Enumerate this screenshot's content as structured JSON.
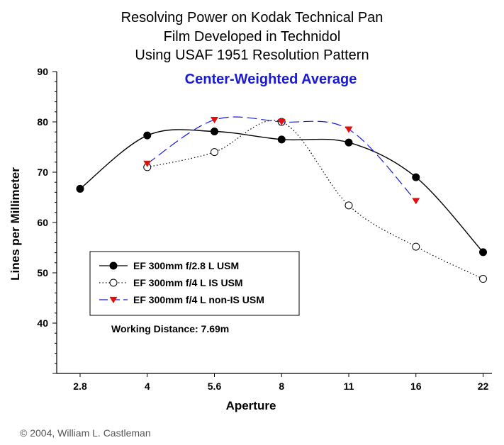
{
  "chart_data": {
    "type": "line",
    "title_lines": [
      "Resolving Power on Kodak Technical Pan",
      "Film Developed in Technidol",
      "Using USAF 1951 Resolution Pattern"
    ],
    "subtitle": "Center-Weighted Average",
    "xlabel": "Aperture",
    "ylabel": "Lines per Millimeter",
    "categories": [
      "2.8",
      "4",
      "5.6",
      "8",
      "11",
      "16",
      "22"
    ],
    "yticks": [
      "40",
      "50",
      "60",
      "70",
      "80",
      "90"
    ],
    "ylim": [
      30,
      90
    ],
    "grid": false,
    "legend_position": "center-left",
    "series": [
      {
        "name": "EF 300mm f/2.8 L USM",
        "color": "#000000",
        "line_style": "solid",
        "marker": "filled-circle",
        "points": [
          [
            0,
            66.7
          ],
          [
            1,
            77.3
          ],
          [
            2,
            78.1
          ],
          [
            3,
            76.5
          ],
          [
            4,
            75.9
          ],
          [
            5,
            69.0
          ],
          [
            6,
            54.1
          ]
        ]
      },
      {
        "name": "EF 300mm f/4 L IS USM",
        "color": "#000000",
        "line_style": "dotted",
        "marker": "open-circle",
        "points": [
          [
            1,
            71.0
          ],
          [
            2,
            74.0
          ],
          [
            3,
            80.0
          ],
          [
            4,
            63.4
          ],
          [
            5,
            55.2
          ],
          [
            6,
            48.8
          ]
        ]
      },
      {
        "name": "EF 300mm f/4 L non-IS USM",
        "color": "#1a1ad6",
        "line_style": "dashed",
        "marker": "red-down-triangle",
        "marker_color": "#e01010",
        "points": [
          [
            1,
            71.7
          ],
          [
            2,
            80.4
          ],
          [
            3,
            80.0
          ],
          [
            4,
            78.5
          ],
          [
            5,
            64.3
          ]
        ]
      }
    ],
    "annotation": "Working Distance: 7.69m"
  },
  "copyright": "© 2004, William L. Castleman"
}
